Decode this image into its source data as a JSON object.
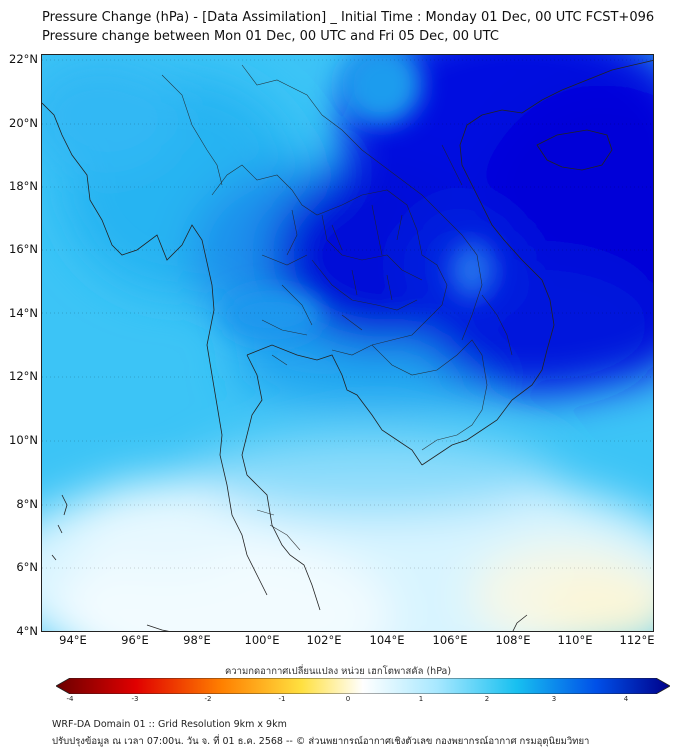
{
  "title_line1": "Pressure Change (hPa) - [Data Assimilation] _ Initial Time : Monday 01 Dec, 00 UTC FCST+096",
  "title_line2": "Pressure change between Mon 01 Dec, 00 UTC and Fri 05 Dec, 00 UTC",
  "lat_labels": [
    "22°N",
    "20°N",
    "18°N",
    "16°N",
    "14°N",
    "12°N",
    "10°N",
    "8°N",
    "6°N",
    "4°N"
  ],
  "lon_labels": [
    "94°E",
    "96°E",
    "98°E",
    "100°E",
    "102°E",
    "104°E",
    "106°E",
    "108°E",
    "110°E",
    "112°E"
  ],
  "colorbar": {
    "label": "ความกดอากาศเปลี่ยนแปลง หน่วย เฮกโตพาสคัล (hPa)",
    "ticks": [
      "-4",
      "-3",
      "-2",
      "-1",
      "0",
      "1",
      "2",
      "3",
      "4"
    ],
    "colors": {
      "min": "#6b0000",
      "strong_neg": "#e00000",
      "mid_neg": "#ff8000",
      "weak_neg": "#ffe040",
      "zero": "#ffffff",
      "weak_pos": "#a8e8ff",
      "mid_pos": "#18c0f0",
      "strong_pos": "#0050e8",
      "max": "#00008a"
    }
  },
  "footer_line1": "WRF-DA Domain 01 :: Grid Resolution 9km x 9km",
  "footer_line2": "ปรับปรุงข้อมูล ณ เวลา 07:00น. วัน จ. ที่ 01 ธ.ค. 2568 -- © ส่วนพยากรณ์อากาศเชิงตัวเลข กองพยากรณ์อากาศ กรมอุตุนิยมวิทยา"
}
